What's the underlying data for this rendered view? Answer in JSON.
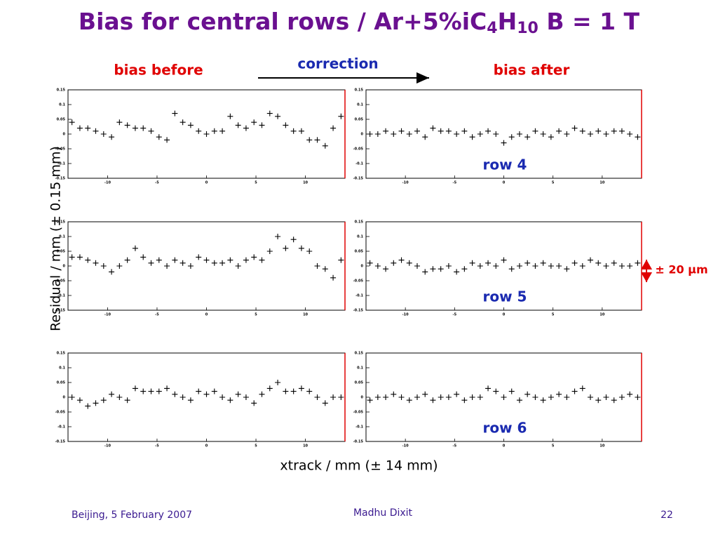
{
  "slide": {
    "title_parts": [
      "Bias for central rows / Ar+5%iC",
      "4",
      "H",
      "10",
      " B = 1 T"
    ],
    "column_before": "bias before",
    "column_after": "bias after",
    "arrow_label": "correction",
    "y_axis_label": "Residual / mm (± 0.15 mm)",
    "x_axis_label": "xtrack / mm (± 14 mm)",
    "range_note": "± 20 μm",
    "footer": {
      "left": "Beijing, 5 February 2007",
      "center": "Madhu Dixit",
      "page": 22
    }
  },
  "chart_data": [
    {
      "type": "scatter",
      "color": "#000000",
      "xlim": [
        -14,
        14
      ],
      "ylim": [
        -0.15,
        0.15
      ],
      "xticks": [
        -10,
        -5,
        0,
        5,
        10
      ],
      "yticks": [
        -0.15,
        -0.1,
        -0.05,
        0,
        0.05,
        0.1,
        0.15
      ],
      "x": [
        -13.6,
        -12.8,
        -12,
        -11.2,
        -10.4,
        -9.6,
        -8.8,
        -8,
        -7.2,
        -6.4,
        -5.6,
        -4.8,
        -4,
        -3.2,
        -2.4,
        -1.6,
        -0.8,
        0,
        0.8,
        1.6,
        2.4,
        3.2,
        4,
        4.8,
        5.6,
        6.4,
        7.2,
        8,
        8.8,
        9.6,
        10.4,
        11.2,
        12,
        12.8,
        13.6
      ],
      "values": [
        0.04,
        0.02,
        0.02,
        0.01,
        0.0,
        -0.01,
        0.04,
        0.03,
        0.02,
        0.02,
        0.01,
        -0.01,
        -0.02,
        0.07,
        0.04,
        0.03,
        0.01,
        0.0,
        0.01,
        0.01,
        0.06,
        0.03,
        0.02,
        0.04,
        0.03,
        0.07,
        0.06,
        0.03,
        0.01,
        0.01,
        -0.02,
        -0.02,
        -0.04,
        0.02,
        0.06
      ]
    },
    {
      "type": "scatter",
      "title": "row 4",
      "color": "#000000",
      "xlim": [
        -14,
        14
      ],
      "ylim": [
        -0.15,
        0.15
      ],
      "xticks": [
        -10,
        -5,
        0,
        5,
        10
      ],
      "yticks": [
        -0.15,
        -0.1,
        -0.05,
        0,
        0.05,
        0.1,
        0.15
      ],
      "x": [
        -13.6,
        -12.8,
        -12,
        -11.2,
        -10.4,
        -9.6,
        -8.8,
        -8,
        -7.2,
        -6.4,
        -5.6,
        -4.8,
        -4,
        -3.2,
        -2.4,
        -1.6,
        -0.8,
        0,
        0.8,
        1.6,
        2.4,
        3.2,
        4,
        4.8,
        5.6,
        6.4,
        7.2,
        8,
        8.8,
        9.6,
        10.4,
        11.2,
        12,
        12.8,
        13.6
      ],
      "values": [
        0.0,
        0.0,
        0.01,
        0.0,
        0.01,
        0.0,
        0.01,
        -0.01,
        0.02,
        0.01,
        0.01,
        0.0,
        0.01,
        -0.01,
        0.0,
        0.01,
        0.0,
        -0.03,
        -0.01,
        0.0,
        -0.01,
        0.01,
        0.0,
        -0.01,
        0.01,
        0.0,
        0.02,
        0.01,
        0.0,
        0.01,
        0.0,
        0.01,
        0.01,
        0.0,
        -0.01
      ]
    },
    {
      "type": "scatter",
      "color": "#000000",
      "xlim": [
        -14,
        14
      ],
      "ylim": [
        -0.15,
        0.15
      ],
      "xticks": [
        -10,
        -5,
        0,
        5,
        10
      ],
      "yticks": [
        -0.15,
        -0.1,
        -0.05,
        0,
        0.05,
        0.1,
        0.15
      ],
      "x": [
        -13.6,
        -12.8,
        -12,
        -11.2,
        -10.4,
        -9.6,
        -8.8,
        -8,
        -7.2,
        -6.4,
        -5.6,
        -4.8,
        -4,
        -3.2,
        -2.4,
        -1.6,
        -0.8,
        0,
        0.8,
        1.6,
        2.4,
        3.2,
        4,
        4.8,
        5.6,
        6.4,
        7.2,
        8,
        8.8,
        9.6,
        10.4,
        11.2,
        12,
        12.8,
        13.6
      ],
      "values": [
        0.03,
        0.03,
        0.02,
        0.01,
        0.0,
        -0.02,
        0.0,
        0.02,
        0.06,
        0.03,
        0.01,
        0.02,
        0.0,
        0.02,
        0.01,
        0.0,
        0.03,
        0.02,
        0.01,
        0.01,
        0.02,
        0.0,
        0.02,
        0.03,
        0.02,
        0.05,
        0.1,
        0.06,
        0.09,
        0.06,
        0.05,
        0.0,
        -0.01,
        -0.04,
        0.02
      ]
    },
    {
      "type": "scatter",
      "title": "row 5",
      "color": "#000000",
      "xlim": [
        -14,
        14
      ],
      "ylim": [
        -0.15,
        0.15
      ],
      "xticks": [
        -10,
        -5,
        0,
        5,
        10
      ],
      "yticks": [
        -0.15,
        -0.1,
        -0.05,
        0,
        0.05,
        0.1,
        0.15
      ],
      "x": [
        -13.6,
        -12.8,
        -12,
        -11.2,
        -10.4,
        -9.6,
        -8.8,
        -8,
        -7.2,
        -6.4,
        -5.6,
        -4.8,
        -4,
        -3.2,
        -2.4,
        -1.6,
        -0.8,
        0,
        0.8,
        1.6,
        2.4,
        3.2,
        4,
        4.8,
        5.6,
        6.4,
        7.2,
        8,
        8.8,
        9.6,
        10.4,
        11.2,
        12,
        12.8,
        13.6
      ],
      "values": [
        0.01,
        0.0,
        -0.01,
        0.01,
        0.02,
        0.01,
        0.0,
        -0.02,
        -0.01,
        -0.01,
        0.0,
        -0.02,
        -0.01,
        0.01,
        0.0,
        0.01,
        0.0,
        0.02,
        -0.01,
        0.0,
        0.01,
        0.0,
        0.01,
        0.0,
        0.0,
        -0.01,
        0.01,
        0.0,
        0.02,
        0.01,
        0.0,
        0.01,
        0.0,
        0.0,
        0.01
      ]
    },
    {
      "type": "scatter",
      "color": "#000000",
      "xlim": [
        -14,
        14
      ],
      "ylim": [
        -0.15,
        0.15
      ],
      "xticks": [
        -10,
        -5,
        0,
        5,
        10
      ],
      "yticks": [
        -0.15,
        -0.1,
        -0.05,
        0,
        0.05,
        0.1,
        0.15
      ],
      "x": [
        -13.6,
        -12.8,
        -12,
        -11.2,
        -10.4,
        -9.6,
        -8.8,
        -8,
        -7.2,
        -6.4,
        -5.6,
        -4.8,
        -4,
        -3.2,
        -2.4,
        -1.6,
        -0.8,
        0,
        0.8,
        1.6,
        2.4,
        3.2,
        4,
        4.8,
        5.6,
        6.4,
        7.2,
        8,
        8.8,
        9.6,
        10.4,
        11.2,
        12,
        12.8,
        13.6
      ],
      "values": [
        0.0,
        -0.01,
        -0.03,
        -0.02,
        -0.01,
        0.01,
        0.0,
        -0.01,
        0.03,
        0.02,
        0.02,
        0.02,
        0.03,
        0.01,
        0.0,
        -0.01,
        0.02,
        0.01,
        0.02,
        0.0,
        -0.01,
        0.01,
        0.0,
        -0.02,
        0.01,
        0.03,
        0.05,
        0.02,
        0.02,
        0.03,
        0.02,
        0.0,
        -0.02,
        0.0,
        0.0
      ]
    },
    {
      "type": "scatter",
      "title": "row 6",
      "color": "#000000",
      "xlim": [
        -14,
        14
      ],
      "ylim": [
        -0.15,
        0.15
      ],
      "xticks": [
        -10,
        -5,
        0,
        5,
        10
      ],
      "yticks": [
        -0.15,
        -0.1,
        -0.05,
        0,
        0.05,
        0.1,
        0.15
      ],
      "x": [
        -13.6,
        -12.8,
        -12,
        -11.2,
        -10.4,
        -9.6,
        -8.8,
        -8,
        -7.2,
        -6.4,
        -5.6,
        -4.8,
        -4,
        -3.2,
        -2.4,
        -1.6,
        -0.8,
        0,
        0.8,
        1.6,
        2.4,
        3.2,
        4,
        4.8,
        5.6,
        6.4,
        7.2,
        8,
        8.8,
        9.6,
        10.4,
        11.2,
        12,
        12.8,
        13.6
      ],
      "values": [
        -0.01,
        0.0,
        0.0,
        0.01,
        0.0,
        -0.01,
        0.0,
        0.01,
        -0.01,
        0.0,
        0.0,
        0.01,
        -0.01,
        0.0,
        0.0,
        0.03,
        0.02,
        0.0,
        0.02,
        -0.01,
        0.01,
        0.0,
        -0.01,
        0.0,
        0.01,
        0.0,
        0.02,
        0.03,
        0.0,
        -0.01,
        0.0,
        -0.01,
        0.0,
        0.01,
        0.0
      ]
    }
  ]
}
